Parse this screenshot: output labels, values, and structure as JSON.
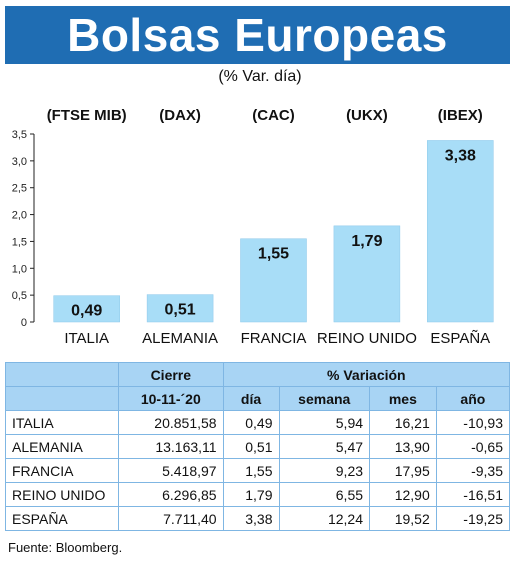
{
  "title": "Bolsas Europeas",
  "subtitle": "(% Var. día)",
  "chart_data": {
    "type": "bar",
    "categories": [
      "ITALIA",
      "ALEMANIA",
      "FRANCIA",
      "REINO UNIDO",
      "ESPAÑA"
    ],
    "indices": [
      "(FTSE MIB)",
      "(DAX)",
      "(CAC)",
      "(UKX)",
      "(IBEX)"
    ],
    "values": [
      0.49,
      0.51,
      1.55,
      1.79,
      3.38
    ],
    "value_labels": [
      "0,49",
      "0,51",
      "1,55",
      "1,79",
      "3,38"
    ],
    "yticks": [
      "0",
      "0,5",
      "1,0",
      "1,5",
      "2,0",
      "2,5",
      "3,0",
      "3,5"
    ],
    "ylim": [
      0,
      3.5
    ],
    "bar_color": "#a8ddf7",
    "xlabel": "",
    "ylabel": ""
  },
  "table": {
    "header1": [
      "",
      "Cierre",
      "% Variación"
    ],
    "header2": [
      "",
      "10-11-´20",
      "día",
      "semana",
      "mes",
      "año"
    ],
    "rows": [
      [
        "ITALIA",
        "20.851,58",
        "0,49",
        "5,94",
        "16,21",
        "-10,93"
      ],
      [
        "ALEMANIA",
        "13.163,11",
        "0,51",
        "5,47",
        "13,90",
        "-0,65"
      ],
      [
        "FRANCIA",
        "5.418,97",
        "1,55",
        "9,23",
        "17,95",
        "-9,35"
      ],
      [
        "REINO UNIDO",
        "6.296,85",
        "1,79",
        "6,55",
        "12,90",
        "-16,51"
      ],
      [
        "ESPAÑA",
        "7.711,40",
        "3,38",
        "12,24",
        "19,52",
        "-19,25"
      ]
    ]
  },
  "source": "Fuente: Bloomberg.",
  "colors": {
    "title_bg": "#1f6db3",
    "header_bg": "#a8d4f4",
    "grid": "#7fb6e3"
  }
}
